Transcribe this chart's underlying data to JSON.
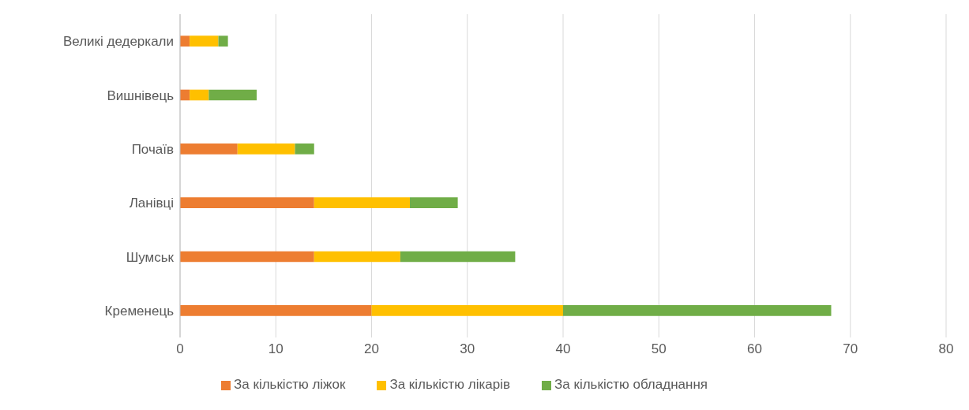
{
  "chart_data": {
    "type": "bar",
    "orientation": "horizontal",
    "stacked": true,
    "categories": [
      "Великі дедеркали",
      "Вишнівець",
      "Почаїв",
      "Ланівці",
      "Шумськ",
      "Кременець"
    ],
    "series": [
      {
        "name": "За кількістю ліжок",
        "color": "#ed7d31",
        "values": [
          1,
          1,
          6,
          14,
          14,
          20
        ]
      },
      {
        "name": "За кількістю лікарів",
        "color": "#ffc000",
        "values": [
          3,
          2,
          6,
          10,
          9,
          20
        ]
      },
      {
        "name": "За кількістю обладнання",
        "color": "#70ad47",
        "values": [
          1,
          5,
          2,
          5,
          12,
          28
        ]
      }
    ],
    "xlim": [
      0,
      80
    ],
    "xticks": [
      0,
      10,
      20,
      30,
      40,
      50,
      60,
      70,
      80
    ],
    "grid": "x",
    "legend": "bottom"
  }
}
